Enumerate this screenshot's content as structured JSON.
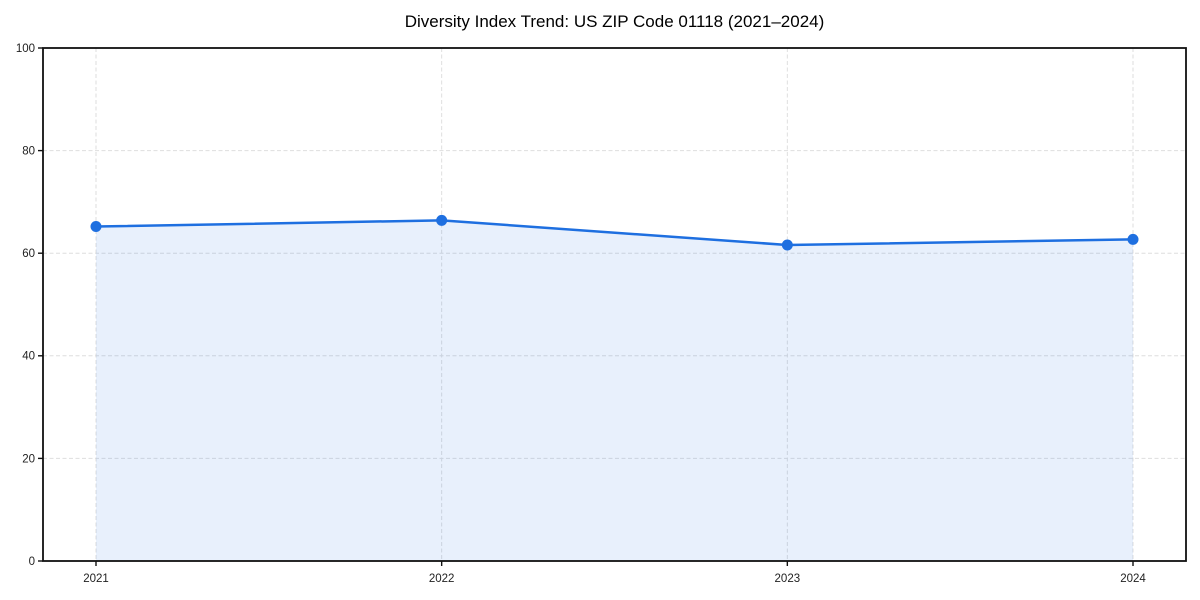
{
  "chart_data": {
    "type": "line",
    "title": "Diversity Index Trend: US ZIP Code 01118 (2021–2024)",
    "categories": [
      "2021",
      "2022",
      "2023",
      "2024"
    ],
    "series": [
      {
        "name": "Diversity Index",
        "values": [
          65.2,
          66.4,
          61.6,
          62.7
        ]
      }
    ],
    "xlabel": "",
    "ylabel": "",
    "ylim": [
      0,
      100
    ],
    "yticks": [
      0,
      20,
      40,
      60,
      80,
      100
    ],
    "grid": "dashed-both-axes",
    "legend_position": "none",
    "marker": "circle",
    "area_fill": true
  },
  "colors": {
    "line": "#1e6fe0",
    "marker": "#1e6fe0",
    "area_fill": "#1e6fe0",
    "area_fill_opacity": "0.1",
    "grid": "#dedede",
    "axis": "#111111",
    "tick_label": "#222222",
    "title": "#000000",
    "background": "#ffffff"
  }
}
